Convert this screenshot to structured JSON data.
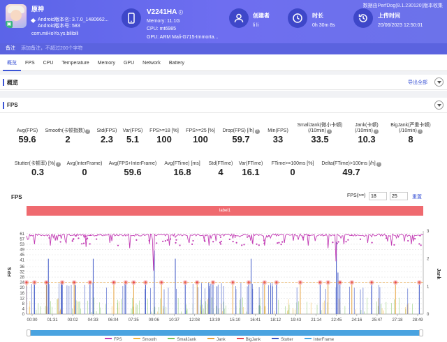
{
  "header": {
    "data_source": "数据由PerfDog(8.1.230120)版本收集",
    "app": {
      "name": "原神",
      "version_line1": "Android版本名: 3.7.0_1480662...",
      "version_line2": "Android版本号: 583",
      "package": "com.miHoYo.ys.bilibili"
    },
    "device": {
      "name": "V2241HA",
      "memory": "Memory: 11.1G",
      "cpu": "CPU: mt6985",
      "gpu": "GPU: ARM Mali-G715-Immorta..."
    },
    "creator": {
      "label": "创建者",
      "value": "li li"
    },
    "duration": {
      "label": "时长",
      "value": "0h 30m 8s"
    },
    "upload": {
      "label": "上传时间",
      "value": "20/06/2023 12:50:01"
    }
  },
  "note": {
    "label": "备注",
    "placeholder": "添加备注，不超过200个字符"
  },
  "tabs": [
    "概览",
    "FPS",
    "CPU",
    "Temperature",
    "Memory",
    "GPU",
    "Network",
    "Battery"
  ],
  "overview": {
    "title": "概览",
    "export": "导出全部"
  },
  "fps_section": {
    "title": "FPS"
  },
  "stats_row1": [
    {
      "label": "Avg(FPS)",
      "value": "59.6"
    },
    {
      "label": "Smooth(卡顿指数)",
      "value": "2"
    },
    {
      "label": "Std(FPS)",
      "value": "2.3"
    },
    {
      "label": "Var(FPS)",
      "value": "5.1"
    },
    {
      "label": "FPS>=18 [%]",
      "value": "100"
    },
    {
      "label": "FPS>=25 [%]",
      "value": "100"
    },
    {
      "label": "Drop(FPS) [/h]",
      "value": "59.7"
    },
    {
      "label": "Min(FPS)",
      "value": "33"
    },
    {
      "label": "SmallJank(微小卡顿)",
      "label2": "(/10min)",
      "value": "33.5"
    },
    {
      "label": "Jank(卡顿)",
      "label2": "(/10min)",
      "value": "10.3"
    },
    {
      "label": "BigJank(严重卡顿)",
      "label2": "(/10min)",
      "value": "8"
    }
  ],
  "stats_row2": [
    {
      "label": "Stutter(卡顿率) [%]",
      "value": "0.3"
    },
    {
      "label": "Avg(InterFrame)",
      "value": "0"
    },
    {
      "label": "Avg(FPS+InterFrame)",
      "value": "59.6"
    },
    {
      "label": "Avg(FTime) [ms]",
      "value": "16.8"
    },
    {
      "label": "Std(FTime)",
      "value": "4"
    },
    {
      "label": "Var(FTime)",
      "value": "16.1"
    },
    {
      "label": "FTime>=100ms [%]",
      "value": "0"
    },
    {
      "label": "Delta(FTime)>100ms [/h]",
      "value": "49.7"
    }
  ],
  "chart_controls": {
    "threshold_label": "FPS(>=)",
    "threshold_1": "18",
    "threshold_2": "25",
    "reset": "重置"
  },
  "chart_data": {
    "type": "line",
    "title": "FPS",
    "band_label": "label1",
    "ylabel": "FPS",
    "y2label": "Jank",
    "yticks": [
      "0",
      "4",
      "8",
      "12",
      "16",
      "20",
      "24",
      "28",
      "32",
      "36",
      "41",
      "45",
      "49",
      "53",
      "57",
      "61"
    ],
    "y2ticks": [
      "0",
      "1",
      "2",
      "3"
    ],
    "ylim": [
      0,
      63
    ],
    "y2lim": [
      0,
      3
    ],
    "xticks": [
      "00:00",
      "01:31",
      "03:02",
      "04:33",
      "06:04",
      "07:35",
      "09:06",
      "10:37",
      "12:08",
      "13:39",
      "15:10",
      "16:41",
      "18:12",
      "19:43",
      "21:14",
      "22:45",
      "24:16",
      "25:47",
      "27:18",
      "28:49"
    ],
    "fps_baseline": 60,
    "fps_dips": [
      [
        0.02,
        53
      ],
      [
        0.06,
        52
      ],
      [
        0.1,
        54
      ],
      [
        0.15,
        51
      ],
      [
        0.21,
        54
      ],
      [
        0.26,
        50
      ],
      [
        0.31,
        53
      ],
      [
        0.32,
        33
      ],
      [
        0.36,
        52
      ],
      [
        0.41,
        54
      ],
      [
        0.46,
        52
      ],
      [
        0.52,
        51
      ],
      [
        0.57,
        53
      ],
      [
        0.6,
        52
      ],
      [
        0.65,
        54
      ],
      [
        0.71,
        52
      ],
      [
        0.76,
        50
      ],
      [
        0.781,
        40
      ],
      [
        0.8,
        53
      ],
      [
        0.86,
        54
      ],
      [
        0.92,
        52
      ],
      [
        0.97,
        53
      ]
    ],
    "bigjank_markers": [
      0.0,
      0.02,
      0.05,
      0.09,
      0.12,
      0.16,
      0.22,
      0.25,
      0.27,
      0.3,
      0.34,
      0.4,
      0.43,
      0.47,
      0.52,
      0.56,
      0.6,
      0.63,
      0.69,
      0.74,
      0.76,
      0.79,
      0.82,
      0.87,
      0.93,
      0.99
    ],
    "jank_spikes": [
      [
        0.055,
        2
      ],
      [
        0.168,
        2
      ],
      [
        0.322,
        2.3
      ],
      [
        0.375,
        2
      ],
      [
        0.48,
        1
      ],
      [
        0.566,
        2
      ],
      [
        0.62,
        1
      ],
      [
        0.781,
        2.6
      ],
      [
        0.785,
        1.5
      ],
      [
        0.87,
        1
      ]
    ],
    "series": [
      {
        "name": "FPS",
        "color": "#c23cb4"
      },
      {
        "name": "Smooth",
        "color": "#f2b33d"
      },
      {
        "name": "SmallJank",
        "color": "#7cc35d"
      },
      {
        "name": "Jank",
        "color": "#e7a23d"
      },
      {
        "name": "BigJank",
        "color": "#e6434c"
      },
      {
        "name": "Stutter",
        "color": "#3d56c6"
      },
      {
        "name": "InterFrame",
        "color": "#46a6e6"
      }
    ]
  }
}
